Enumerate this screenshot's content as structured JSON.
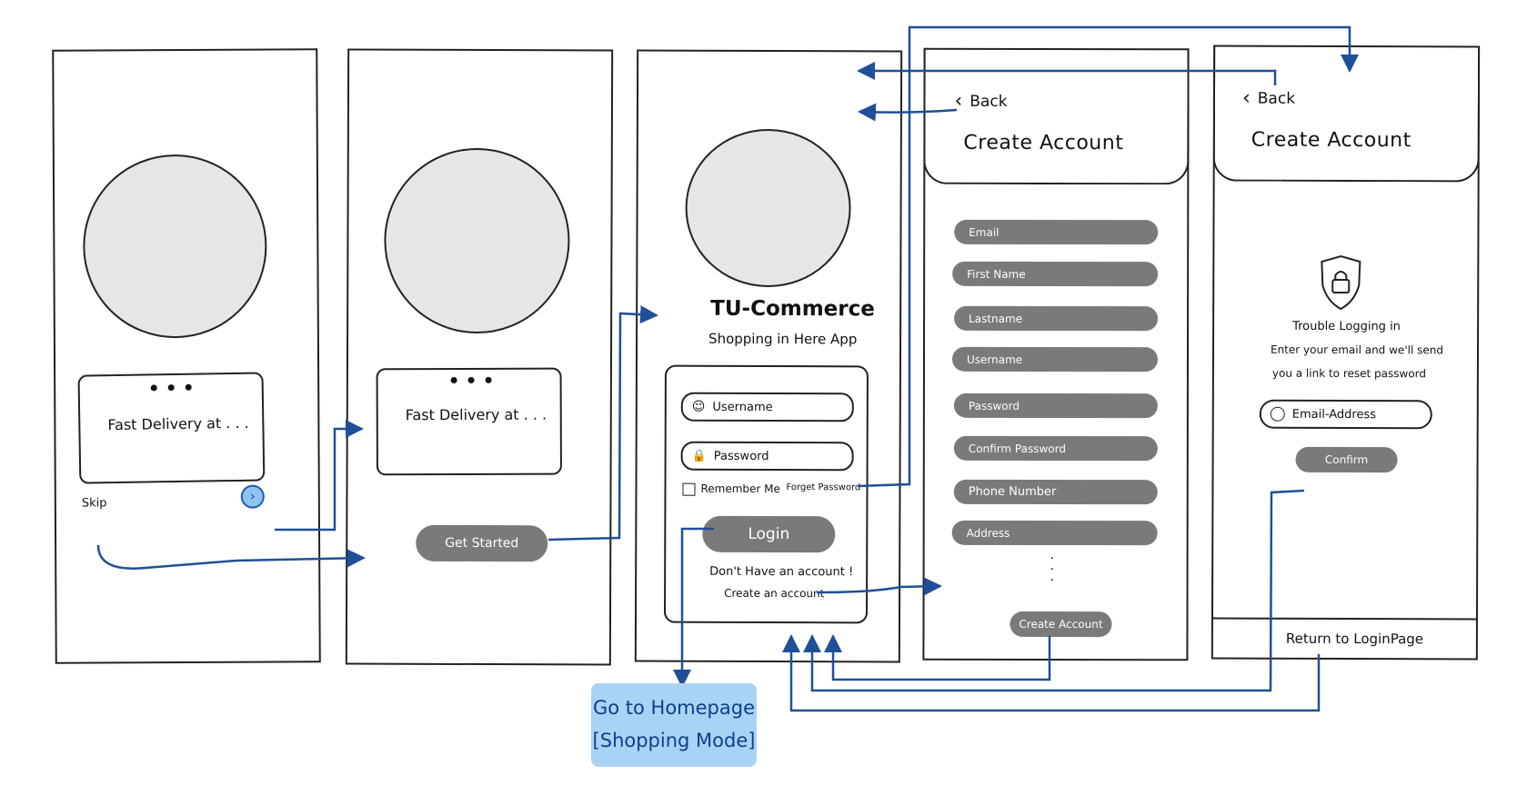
{
  "screen1": {
    "card_text": "Fast Delivery at . . .",
    "skip": "Skip"
  },
  "screen2": {
    "card_text": "Fast Delivery at . . .",
    "get_started": "Get Started"
  },
  "screen3": {
    "app_name": "TU-Commerce",
    "tagline": "Shopping in Here App",
    "username_placeholder": "Username",
    "password_placeholder": "Password",
    "remember_me": "Remember Me",
    "forget_password": "Forget Password",
    "login": "Login",
    "no_account": "Don't Have an account !",
    "create_account_link": "Create an account"
  },
  "screen4": {
    "back": "Back",
    "title": "Create Account",
    "fields": [
      "Email",
      "First Name",
      "Lastname",
      "Username",
      "Password",
      "Confirm Password",
      "Phone Number",
      "Address"
    ],
    "button": "Create Account"
  },
  "screen5": {
    "back": "Back",
    "title": "Create Account",
    "trouble_title": "Trouble Logging in",
    "trouble_line1": "Enter your email and we'll send",
    "trouble_line2": "you a link to reset password",
    "email_placeholder": "Email-Address",
    "confirm": "Confirm",
    "return": "Return to LoginPage"
  },
  "note": {
    "line1": "Go to Homepage",
    "line2": "[Shopping Mode]"
  },
  "colors": {
    "flow_arrow": "#1f4f99",
    "note_bg": "#a9d3f5",
    "field_gray": "#7a7a7a",
    "placeholder_circle": "#e6e6e6"
  },
  "icons": [
    "chevron-right-icon",
    "user-icon",
    "lock-icon",
    "chevron-left-icon",
    "shield-lock-icon",
    "checkbox-icon"
  ]
}
